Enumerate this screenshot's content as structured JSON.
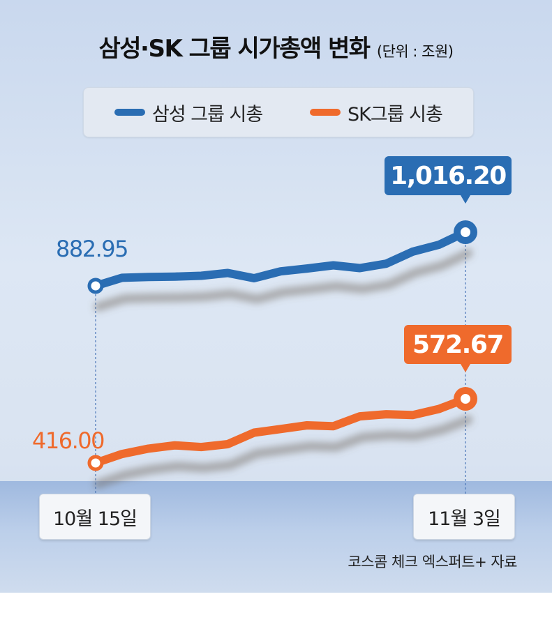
{
  "title": "삼성·SK 그룹 시가총액 변화",
  "unit": "(단위 : 조원)",
  "legend": [
    {
      "name": "삼성 그룹 시총",
      "color": "#2a6db3"
    },
    {
      "name": "SK그룹 시총",
      "color": "#ef6a2c"
    }
  ],
  "dates": {
    "start": "10월 15일",
    "end": "11월 3일"
  },
  "source": "코스콤 체크 엑스퍼트+ 자료",
  "colors": {
    "samsung": "#2a6db3",
    "sk": "#ef6a2c"
  },
  "chart_data": {
    "type": "line",
    "title": "삼성·SK 그룹 시가총액 변화",
    "x": [
      "10월 15일",
      "",
      "",
      "",
      "",
      "",
      "",
      "",
      "",
      "",
      "",
      "",
      "",
      "",
      "11월 3일"
    ],
    "series": [
      {
        "name": "삼성 그룹 시총",
        "values": [
          882.95,
          903,
          905,
          906,
          908,
          915,
          902,
          919,
          926,
          934,
          927,
          938,
          968,
          985,
          1016.2
        ],
        "start_label": "882.95",
        "end_label": "1,016.20"
      },
      {
        "name": "SK그룹 시총",
        "values": [
          416.0,
          438,
          451,
          459,
          455,
          462,
          490,
          499,
          508,
          506,
          530,
          535,
          533,
          548,
          572.67
        ],
        "start_label": "416.00",
        "end_label": "572.67"
      }
    ]
  }
}
